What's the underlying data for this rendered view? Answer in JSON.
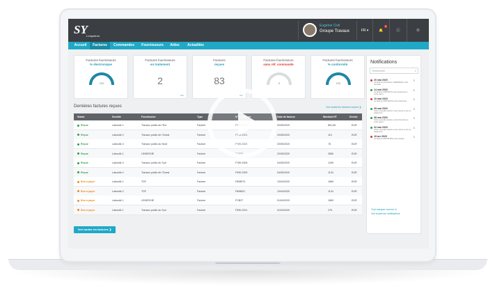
{
  "header": {
    "logo": "SY",
    "logo_sub": "Lexpatron",
    "user_name": "Eugénie Civil",
    "company": "Groupe Travaux",
    "lang": "FR",
    "notif_count": "3"
  },
  "nav": [
    "Accueil",
    "Factures",
    "Commandes",
    "Fournisseurs",
    "Aides",
    "Actualités"
  ],
  "cards": [
    {
      "title": "Factures fournisseurs",
      "sub": "% électronique",
      "sub_color": "#1f9bb6",
      "type": "gauge",
      "value": "100",
      "fill": 1.0
    },
    {
      "title": "Factures fournisseurs",
      "sub": "en traitement",
      "sub_color": "#1f9bb6",
      "type": "number",
      "value": "2",
      "link": "Voir"
    },
    {
      "title": "Factures",
      "sub": "reçues",
      "sub_color": "#1f9bb6",
      "type": "number",
      "value": "83",
      "link": "Voir"
    },
    {
      "title": "Factures fournisseurs",
      "sub": "sans réf. commande",
      "sub_color": "#d9362b",
      "type": "gauge",
      "value": "0",
      "fill": 0.0
    },
    {
      "title": "Factures fournisseurs",
      "sub": "% conformité",
      "sub_color": "#1f9bb6",
      "type": "gauge",
      "value": "100",
      "fill": 1.0
    }
  ],
  "section": {
    "title": "Dernières factures reçues",
    "link": "Voir toutes les factures reçues ❯"
  },
  "table": {
    "headers": [
      "Statut",
      "Société",
      "Fournisseur",
      "Type",
      "N° de facture",
      "Date de facture",
      "Montant HT",
      "Devise"
    ],
    "rows": [
      {
        "status": "Reçue",
        "color": "#2e9e48",
        "societe": "Laboutik 1",
        "fournisseur": "Travaux public de l'Est",
        "type": "Facture",
        "num": "F789-2300",
        "date": "20/05/2020",
        "montant": "861,65",
        "devise": "EUR"
      },
      {
        "status": "Reçue",
        "color": "#2e9e48",
        "societe": "Laboutik 2",
        "fournisseur": "Travaux public de l'Ouest",
        "type": "Facture",
        "num": "F789-2301",
        "date": "20/05/2020",
        "montant": "110",
        "devise": "EUR"
      },
      {
        "status": "Reçue",
        "color": "#2e9e48",
        "societe": "Laboutik 3",
        "fournisseur": "Travaux public du Nord",
        "type": "Facture",
        "num": "F789-2302",
        "date": "20/05/2020",
        "montant": "76",
        "devise": "EUR"
      },
      {
        "status": "Reçue",
        "color": "#2e9e48",
        "societe": "Laboutik 1",
        "fournisseur": "LENERGIE",
        "type": "Facture",
        "num": "TC828",
        "date": "22/05/2020",
        "montant": "2860",
        "devise": "EUR"
      },
      {
        "status": "Reçue",
        "color": "#2e9e48",
        "societe": "Laboutik 3",
        "fournisseur": "Travaux public du Sud",
        "type": "Facture",
        "num": "F789-2306",
        "date": "04/05/2020",
        "montant": "1250",
        "devise": "EUR"
      },
      {
        "status": "Reçue",
        "color": "#2e9e48",
        "societe": "Laboutik 4",
        "fournisseur": "Travaux public de l'Ouest",
        "type": "Facture",
        "num": "F990-2309",
        "date": "04/05/2020",
        "montant": "1134",
        "devise": "EUR"
      },
      {
        "status": "Bon à payer",
        "color": "#f08a24",
        "societe": "Laboutik 1",
        "fournisseur": "TDF",
        "type": "Facture",
        "num": "F808574",
        "date": "13/04/2020",
        "montant": "1869",
        "devise": "EUR"
      },
      {
        "status": "Bon à payer",
        "color": "#f08a24",
        "societe": "Laboutik 2",
        "fournisseur": "TDF",
        "type": "Facture",
        "num": "F808621",
        "date": "13/04/2020",
        "montant": "1134",
        "devise": "EUR"
      },
      {
        "status": "Bon à payer",
        "color": "#f08a24",
        "societe": "Laboutik 1",
        "fournisseur": "LENERGIE",
        "type": "Facture",
        "num": "FCB27",
        "date": "01/04/2020",
        "montant": "1869",
        "devise": "EUR"
      },
      {
        "status": "Bon à payer",
        "color": "#f08a24",
        "societe": "Laboutik 1",
        "fournisseur": "Travaux public du Sud",
        "type": "Facture",
        "num": "F990-2291",
        "date": "01/04/2020",
        "montant": "275",
        "devise": "EUR"
      }
    ]
  },
  "button_all": "Voir toutes les factures ❯",
  "notifications": {
    "title": "Notifications",
    "search_placeholder": "Rechercher",
    "items": [
      {
        "color": "#d9362b",
        "date": "20 mai 2020",
        "text": "La facture fournisseur LENERGIE a été récusée"
      },
      {
        "color": "#2e9e48",
        "date": "14 mai 2020",
        "text": "La facture F0075274 a été transmise à votre client"
      },
      {
        "color": "#d9362b",
        "date": "10 mai 2020",
        "text": "La facture F00752123 a été transmise"
      },
      {
        "color": "#2e9e48",
        "date": "09 mai 2020",
        "text": "Votre nouvelle facture a été reçue et est en traitement"
      },
      {
        "color": "#2e9e48",
        "date": "08 mai 2020",
        "text": "Votre nouvelle facture a été transmise à votre client"
      },
      {
        "color": "#2e9e48",
        "date": "02 mai 2020",
        "text": "Votre nouvelle facture a été reçue et est en traitement"
      },
      {
        "color": "#d9362b",
        "date": "18 avr 2020",
        "text": "La facture F00752183 a été rejetée"
      }
    ],
    "link1": "Tout marquer comme lu",
    "link2": "Voir toutes les notifications"
  }
}
